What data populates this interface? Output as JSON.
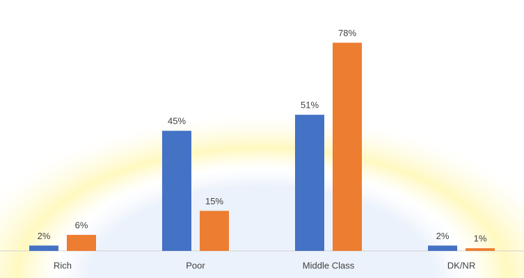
{
  "chart_data": {
    "type": "bar",
    "categories": [
      "Rich",
      "Poor",
      "Middle Class",
      "DK/NR"
    ],
    "series": [
      {
        "color": "#4472c4",
        "values": [
          2,
          45,
          51,
          2
        ],
        "value_labels": [
          "2%",
          "45%",
          "51%",
          "2%"
        ]
      },
      {
        "color": "#ed7d31",
        "values": [
          6,
          15,
          78,
          1
        ],
        "value_labels": [
          "6%",
          "15%",
          "78%",
          "1%"
        ]
      }
    ],
    "ylim": [
      0,
      94
    ]
  }
}
